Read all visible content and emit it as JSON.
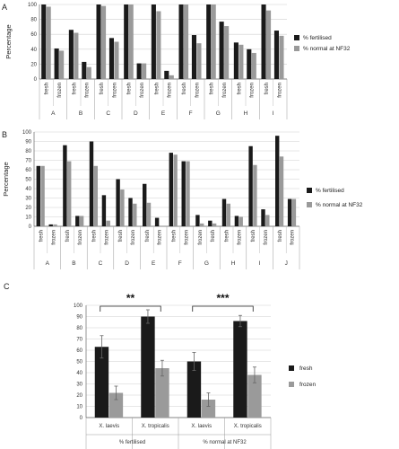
{
  "chart_data": [
    {
      "panel": "A",
      "type": "bar",
      "ylabel": "Percentage",
      "ylim": [
        0,
        100
      ],
      "yticks": [
        0,
        20,
        40,
        60,
        80,
        100
      ],
      "conditions": [
        "fresh",
        "frozen"
      ],
      "groups": [
        "A",
        "B",
        "C",
        "D",
        "E",
        "F",
        "G",
        "H",
        "I"
      ],
      "series": [
        {
          "name": "% fertilised",
          "color": "#1a1a1a",
          "values": [
            [
              100,
              41
            ],
            [
              66,
              23
            ],
            [
              100,
              55
            ],
            [
              100,
              21
            ],
            [
              100,
              11
            ],
            [
              100,
              59
            ],
            [
              100,
              77
            ],
            [
              49,
              40
            ],
            [
              100,
              65
            ]
          ]
        },
        {
          "name": "% normal at NF32",
          "color": "#9a9a9a",
          "values": [
            [
              97,
              38
            ],
            [
              62,
              16
            ],
            [
              98,
              50
            ],
            [
              100,
              21
            ],
            [
              91,
              5
            ],
            [
              100,
              48
            ],
            [
              100,
              71
            ],
            [
              46,
              35
            ],
            [
              92,
              58
            ]
          ]
        }
      ],
      "legend": "right"
    },
    {
      "panel": "B",
      "type": "bar",
      "ylabel": "Percentage",
      "ylim": [
        0,
        100
      ],
      "yticks": [
        0,
        10,
        20,
        30,
        40,
        50,
        60,
        70,
        80,
        90,
        100
      ],
      "groups": [
        {
          "label": "A",
          "conditions": [
            "fresh",
            "frozen"
          ],
          "a": [
            64,
            2
          ],
          "b": [
            64,
            2
          ]
        },
        {
          "label": "B",
          "conditions": [
            "fresh",
            "frozen"
          ],
          "a": [
            86,
            11
          ],
          "b": [
            69,
            11
          ]
        },
        {
          "label": "C",
          "conditions": [
            "fresh",
            "frozen"
          ],
          "a": [
            90,
            33
          ],
          "b": [
            64,
            6
          ]
        },
        {
          "label": "D",
          "conditions": [
            "fresh",
            "frozen"
          ],
          "a": [
            50,
            30
          ],
          "b": [
            39,
            24
          ]
        },
        {
          "label": "E",
          "conditions": [
            "fresh",
            "frozen"
          ],
          "a": [
            45,
            9
          ],
          "b": [
            25,
            0
          ]
        },
        {
          "label": "F",
          "conditions": [
            "fresh",
            "frozen"
          ],
          "a": [
            78,
            69
          ],
          "b": [
            76,
            69
          ]
        },
        {
          "label": "G",
          "conditions": [
            "frozen",
            "fresh"
          ],
          "a": [
            12,
            6
          ],
          "b": [
            3,
            3
          ]
        },
        {
          "label": "H",
          "conditions": [
            "fresh",
            "frozen"
          ],
          "a": [
            29,
            11
          ],
          "b": [
            24,
            10
          ]
        },
        {
          "label": "I",
          "conditions": [
            "fresh",
            "frozen"
          ],
          "a": [
            85,
            18
          ],
          "b": [
            65,
            12
          ]
        },
        {
          "label": "J",
          "conditions": [
            "fresh",
            "frozen"
          ],
          "a": [
            96,
            29
          ],
          "b": [
            74,
            29
          ]
        }
      ],
      "series": [
        {
          "name": "% fertilised",
          "color": "#1a1a1a"
        },
        {
          "name": "% normal at NF32",
          "color": "#9a9a9a"
        }
      ],
      "legend": "right"
    },
    {
      "panel": "C",
      "type": "bar",
      "ylim": [
        0,
        100
      ],
      "yticks": [
        0,
        10,
        20,
        30,
        40,
        50,
        60,
        70,
        80,
        90,
        100
      ],
      "categories": [
        "X. laevis",
        "X. tropicalis",
        "X. laevis",
        "X. tropicalis"
      ],
      "group_labels": [
        "% fertilised",
        "% normal at NF32"
      ],
      "series": [
        {
          "name": "fresh",
          "color": "#1a1a1a",
          "values": [
            63,
            90,
            50,
            86
          ],
          "errors": [
            10,
            6,
            8,
            5
          ]
        },
        {
          "name": "frozen",
          "color": "#9a9a9a",
          "values": [
            22,
            44,
            16,
            38
          ],
          "errors": [
            6,
            7,
            6,
            7
          ]
        }
      ],
      "significance": [
        "**",
        "***"
      ],
      "legend": "right"
    }
  ]
}
